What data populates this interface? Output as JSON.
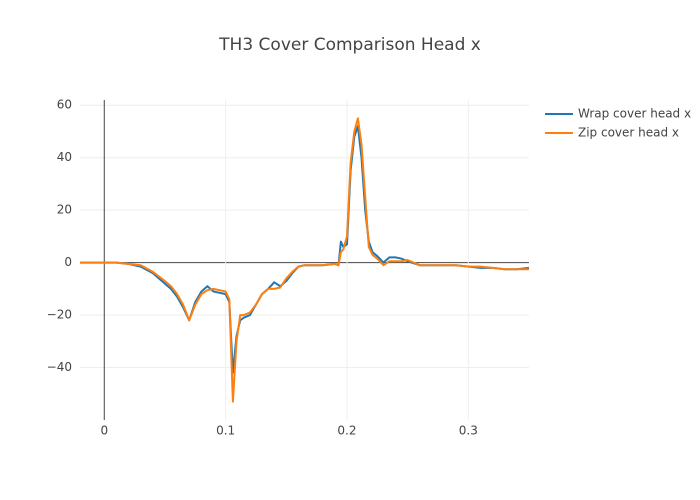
{
  "chart_data": {
    "type": "line",
    "title": "TH3 Cover Comparison Head x",
    "x": [
      -0.02,
      0,
      0.01,
      0.02,
      0.03,
      0.04,
      0.05,
      0.055,
      0.06,
      0.065,
      0.07,
      0.075,
      0.08,
      0.085,
      0.09,
      0.095,
      0.1,
      0.103,
      0.106,
      0.109,
      0.112,
      0.115,
      0.12,
      0.125,
      0.13,
      0.135,
      0.14,
      0.145,
      0.15,
      0.155,
      0.16,
      0.165,
      0.17,
      0.18,
      0.19,
      0.193,
      0.195,
      0.197,
      0.2,
      0.203,
      0.206,
      0.209,
      0.212,
      0.215,
      0.218,
      0.221,
      0.225,
      0.23,
      0.235,
      0.24,
      0.245,
      0.25,
      0.26,
      0.27,
      0.28,
      0.29,
      0.3,
      0.31,
      0.32,
      0.33,
      0.34,
      0.35
    ],
    "series": [
      {
        "name": "Wrap cover head x",
        "color": "#1f77b4",
        "values": [
          0,
          0,
          0,
          -0.5,
          -1.5,
          -4,
          -8,
          -10,
          -13,
          -17,
          -22,
          -15,
          -11,
          -9,
          -11,
          -11.5,
          -12,
          -15,
          -42,
          -28,
          -22,
          -21,
          -20,
          -16,
          -12,
          -10,
          -7.5,
          -9,
          -7,
          -4,
          -1.5,
          -1,
          -1,
          -1,
          -0.5,
          -1,
          8,
          6,
          7,
          35,
          48,
          52,
          40,
          20,
          8,
          4,
          2.5,
          0,
          2,
          2,
          1.5,
          0.5,
          -1,
          -1,
          -1,
          -1,
          -1.5,
          -2,
          -2,
          -2.5,
          -2.5,
          -2
        ]
      },
      {
        "name": "Zip cover head x",
        "color": "#ff7f0e",
        "values": [
          0,
          0,
          0,
          -0.5,
          -1,
          -3.5,
          -7,
          -9,
          -12,
          -16,
          -22,
          -16,
          -12,
          -10.5,
          -10,
          -10.5,
          -11,
          -14,
          -53,
          -30,
          -20,
          -20,
          -19,
          -16,
          -12,
          -10,
          -10,
          -9.5,
          -6,
          -3.5,
          -1.5,
          -1,
          -1,
          -1,
          -0.5,
          -1,
          4,
          5,
          10,
          38,
          50,
          55,
          45,
          25,
          6,
          3,
          1.5,
          -1,
          0.5,
          0.5,
          0.5,
          1,
          -1,
          -1,
          -1,
          -1,
          -1.5,
          -1.5,
          -2,
          -2.5,
          -2.5,
          -2.5
        ]
      }
    ],
    "xlim": [
      -0.02,
      0.35
    ],
    "xticks": [
      0,
      0.1,
      0.2,
      0.3
    ],
    "ylim": [
      -60,
      62
    ],
    "yticks": [
      {
        "value": -40,
        "label": "−40"
      },
      {
        "value": -20,
        "label": "−20"
      },
      0,
      20,
      40,
      60
    ],
    "grid": true,
    "legend": "top-right"
  }
}
